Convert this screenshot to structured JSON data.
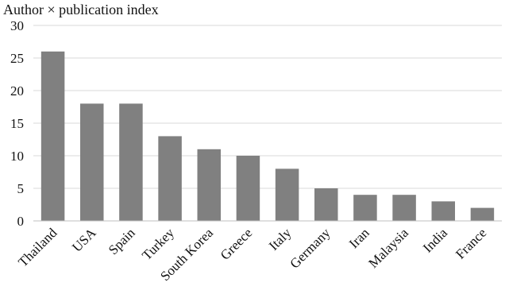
{
  "chart_data": {
    "type": "bar",
    "title": "",
    "ylabel": "Author × publication index",
    "xlabel": "",
    "categories": [
      "Thailand",
      "USA",
      "Spain",
      "Turkey",
      "South Korea",
      "Greece",
      "Italy",
      "Germany",
      "Iran",
      "Malaysia",
      "India",
      "France"
    ],
    "values": [
      26,
      18,
      18,
      13,
      11,
      10,
      8,
      5,
      4,
      4,
      3,
      2
    ],
    "ylim": [
      0,
      30
    ],
    "yticks": [
      0,
      5,
      10,
      15,
      20,
      25,
      30
    ],
    "grid": true,
    "legend": "none",
    "colors": {
      "bar": "#808080",
      "grid": "#d9d9d9",
      "axis": "#bfbfbf",
      "text": "#111111"
    }
  }
}
